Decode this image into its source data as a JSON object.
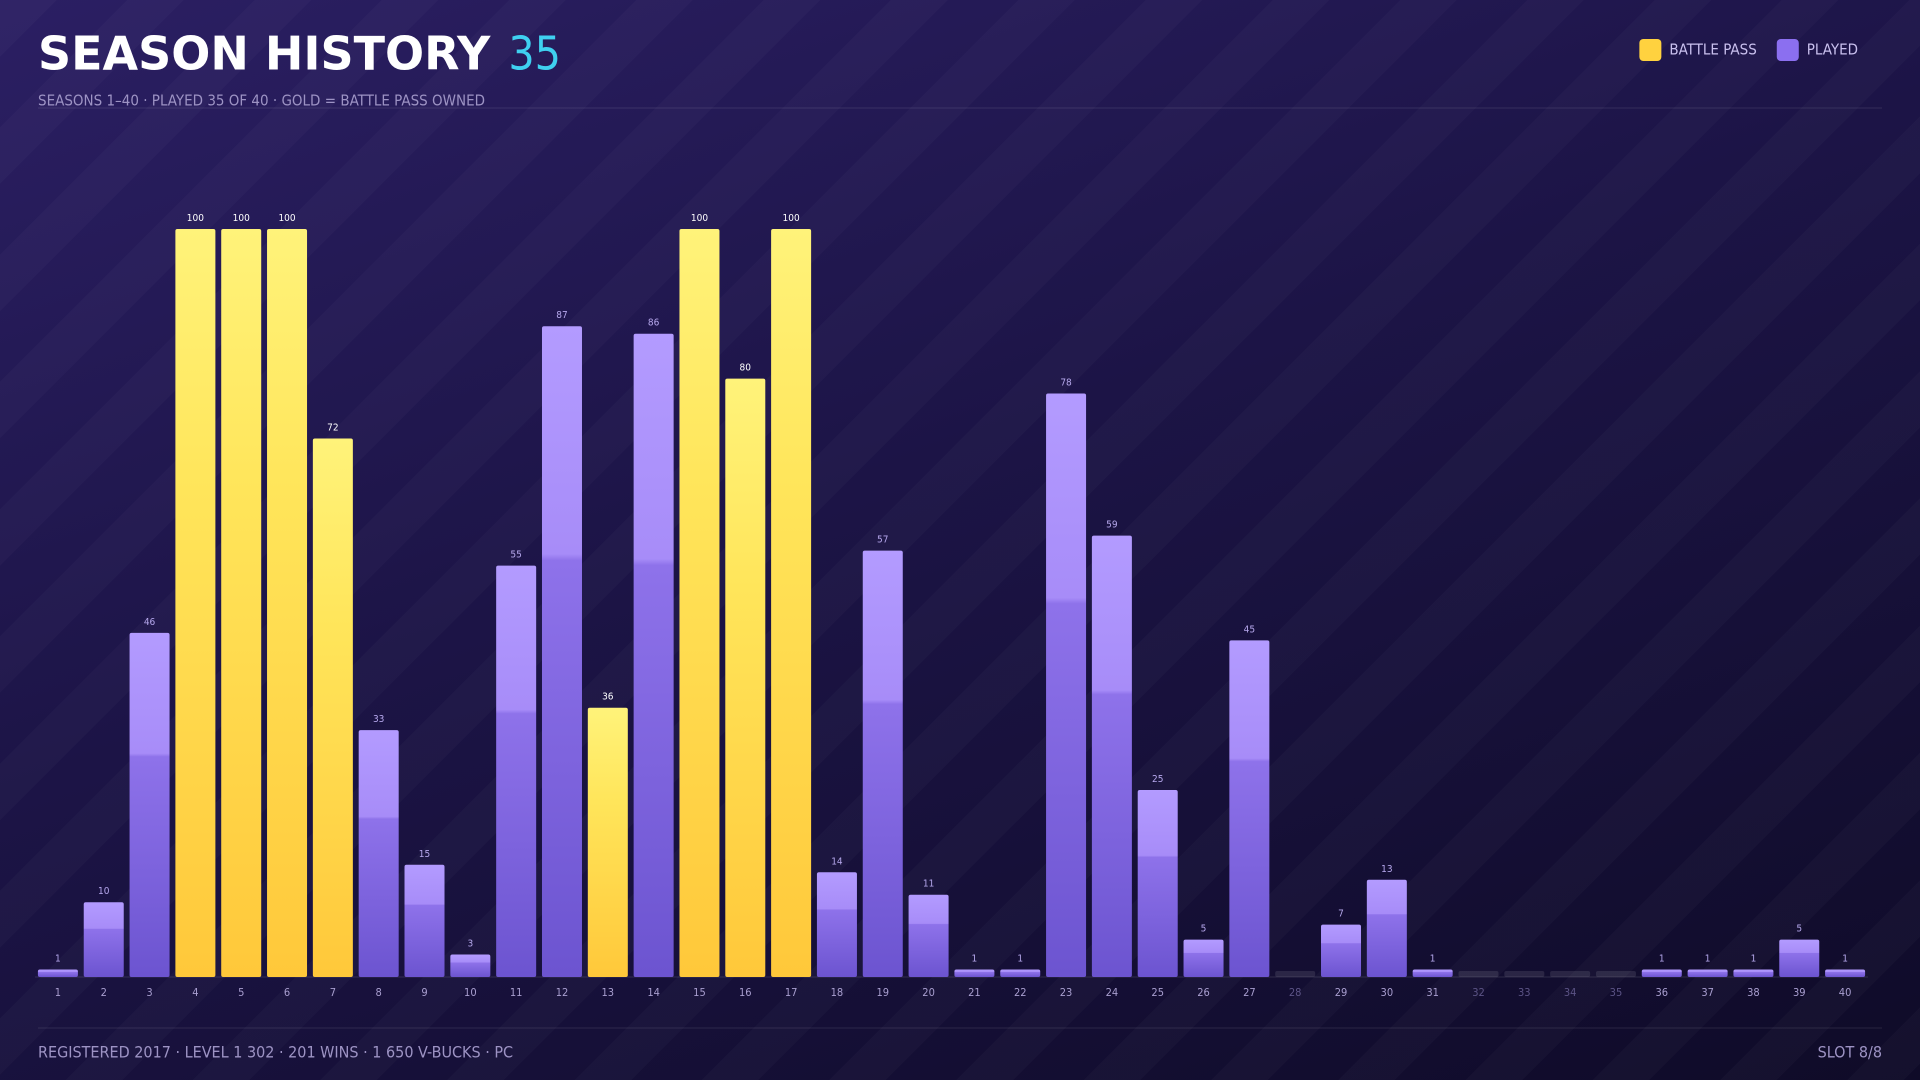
{
  "chart_data": {
    "type": "bar",
    "title": "SEASON HISTORY",
    "title_count": "35",
    "subtitle": "SEASONS 1–40 · PLAYED 35 OF 40 · GOLD = BATTLE PASS OWNED",
    "categories": [
      "1",
      "2",
      "3",
      "4",
      "5",
      "6",
      "7",
      "8",
      "9",
      "10",
      "11",
      "12",
      "13",
      "14",
      "15",
      "16",
      "17",
      "18",
      "19",
      "20",
      "21",
      "22",
      "23",
      "24",
      "25",
      "26",
      "27",
      "28",
      "29",
      "30",
      "31",
      "32",
      "33",
      "34",
      "35",
      "36",
      "37",
      "38",
      "39",
      "40"
    ],
    "series": [
      {
        "name": "BATTLE PASS",
        "color": "#ffd23f",
        "values": [
          null,
          null,
          null,
          100,
          100,
          100,
          72,
          null,
          null,
          null,
          null,
          null,
          36,
          null,
          100,
          80,
          100,
          null,
          null,
          null,
          null,
          null,
          null,
          null,
          null,
          null,
          null,
          null,
          null,
          null,
          null,
          null,
          null,
          null,
          null,
          null,
          null,
          null,
          null,
          null
        ]
      },
      {
        "name": "PLAYED",
        "color": "#8b6ff0",
        "values": [
          1,
          10,
          46,
          null,
          null,
          null,
          null,
          33,
          15,
          3,
          55,
          87,
          null,
          86,
          null,
          null,
          null,
          14,
          57,
          11,
          1,
          1,
          78,
          59,
          25,
          5,
          45,
          null,
          7,
          13,
          1,
          null,
          null,
          null,
          null,
          1,
          1,
          1,
          5,
          1
        ]
      }
    ],
    "ylim": [
      0,
      100
    ],
    "legend": "top-right",
    "footer": "REGISTERED 2017 · LEVEL 1 302 · 201 WINS · 1 650 V-BUCKS · PC",
    "slot": "SLOT 8/8"
  }
}
